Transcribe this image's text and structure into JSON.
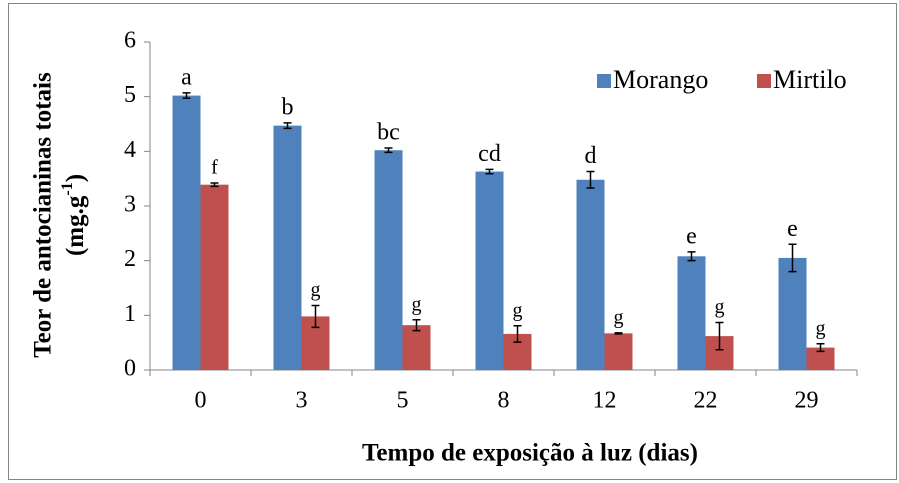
{
  "chart_data": {
    "type": "bar",
    "xlabel": "Tempo de exposição à luz (dias)",
    "ylabel": [
      "Teor de antocianinas totais",
      "(mg.g",
      "-1",
      ")"
    ],
    "categories": [
      "0",
      "3",
      "5",
      "8",
      "12",
      "22",
      "29"
    ],
    "series": [
      {
        "name": "Morango",
        "color": "#4f81bd",
        "values": [
          5.02,
          4.47,
          4.02,
          3.63,
          3.48,
          2.08,
          2.05
        ],
        "errors": [
          0.05,
          0.05,
          0.04,
          0.04,
          0.15,
          0.08,
          0.25
        ],
        "letters": [
          "a",
          "b",
          "bc",
          "cd",
          "d",
          "e",
          "e"
        ]
      },
      {
        "name": "Mirtilo",
        "color": "#c0504d",
        "values": [
          3.39,
          0.98,
          0.82,
          0.66,
          0.67,
          0.62,
          0.41
        ],
        "errors": [
          0.03,
          0.2,
          0.1,
          0.15,
          0.01,
          0.25,
          0.07
        ],
        "letters": [
          "f",
          "g",
          "g",
          "g",
          "g",
          "g",
          "g"
        ]
      }
    ],
    "ylim": [
      0,
      6
    ],
    "yticks": [
      0,
      1,
      2,
      3,
      4,
      5,
      6
    ],
    "legend": "top-right",
    "grid": false
  }
}
